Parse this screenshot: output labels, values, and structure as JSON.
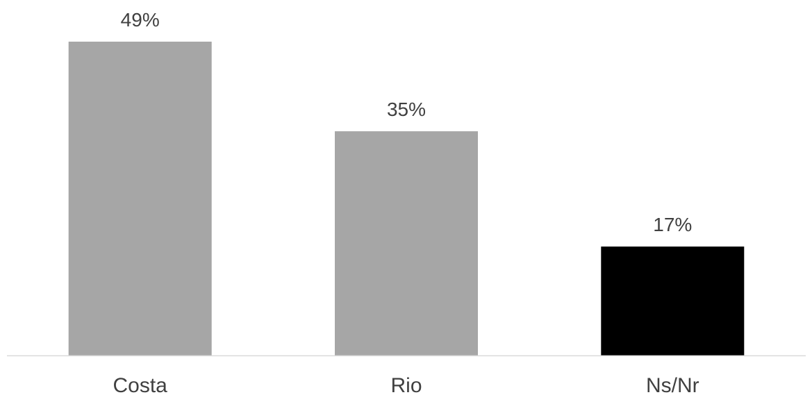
{
  "chart_data": {
    "type": "bar",
    "categories": [
      "Costa",
      "Rio",
      "Ns/Nr"
    ],
    "values": [
      49,
      35,
      17
    ],
    "data_labels": [
      "49%",
      "35%",
      "17%"
    ],
    "unit": "%",
    "bar_colors": [
      "#a6a6a6",
      "#a6a6a6",
      "#000000"
    ],
    "axis_color": "#d9d9d9",
    "label_color": "#404040",
    "ylim": [
      0,
      49
    ],
    "grid": false,
    "legend": "none"
  }
}
